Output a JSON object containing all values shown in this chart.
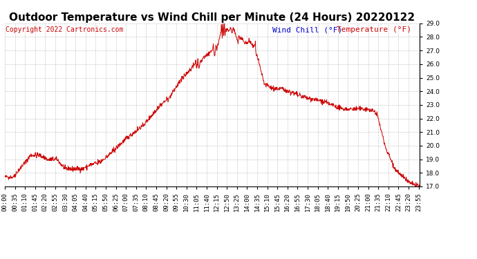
{
  "title": "Outdoor Temperature vs Wind Chill per Minute (24 Hours) 20220122",
  "copyright": "Copyright 2022 Cartronics.com",
  "legend_wind_chill": "Wind Chill (°F)",
  "legend_temperature": "Temperature (°F)",
  "ylim": [
    17.0,
    29.0
  ],
  "ytick_min": 17.0,
  "ytick_max": 29.0,
  "ytick_step": 1.0,
  "background_color": "#ffffff",
  "plot_bg_color": "#ffffff",
  "grid_color": "#bbbbbb",
  "line_color": "#cc0000",
  "wind_chill_legend_color": "#0000cc",
  "temp_legend_color": "#cc0000",
  "title_fontsize": 11,
  "copyright_fontsize": 7,
  "legend_fontsize": 8,
  "tick_fontsize": 6.5
}
